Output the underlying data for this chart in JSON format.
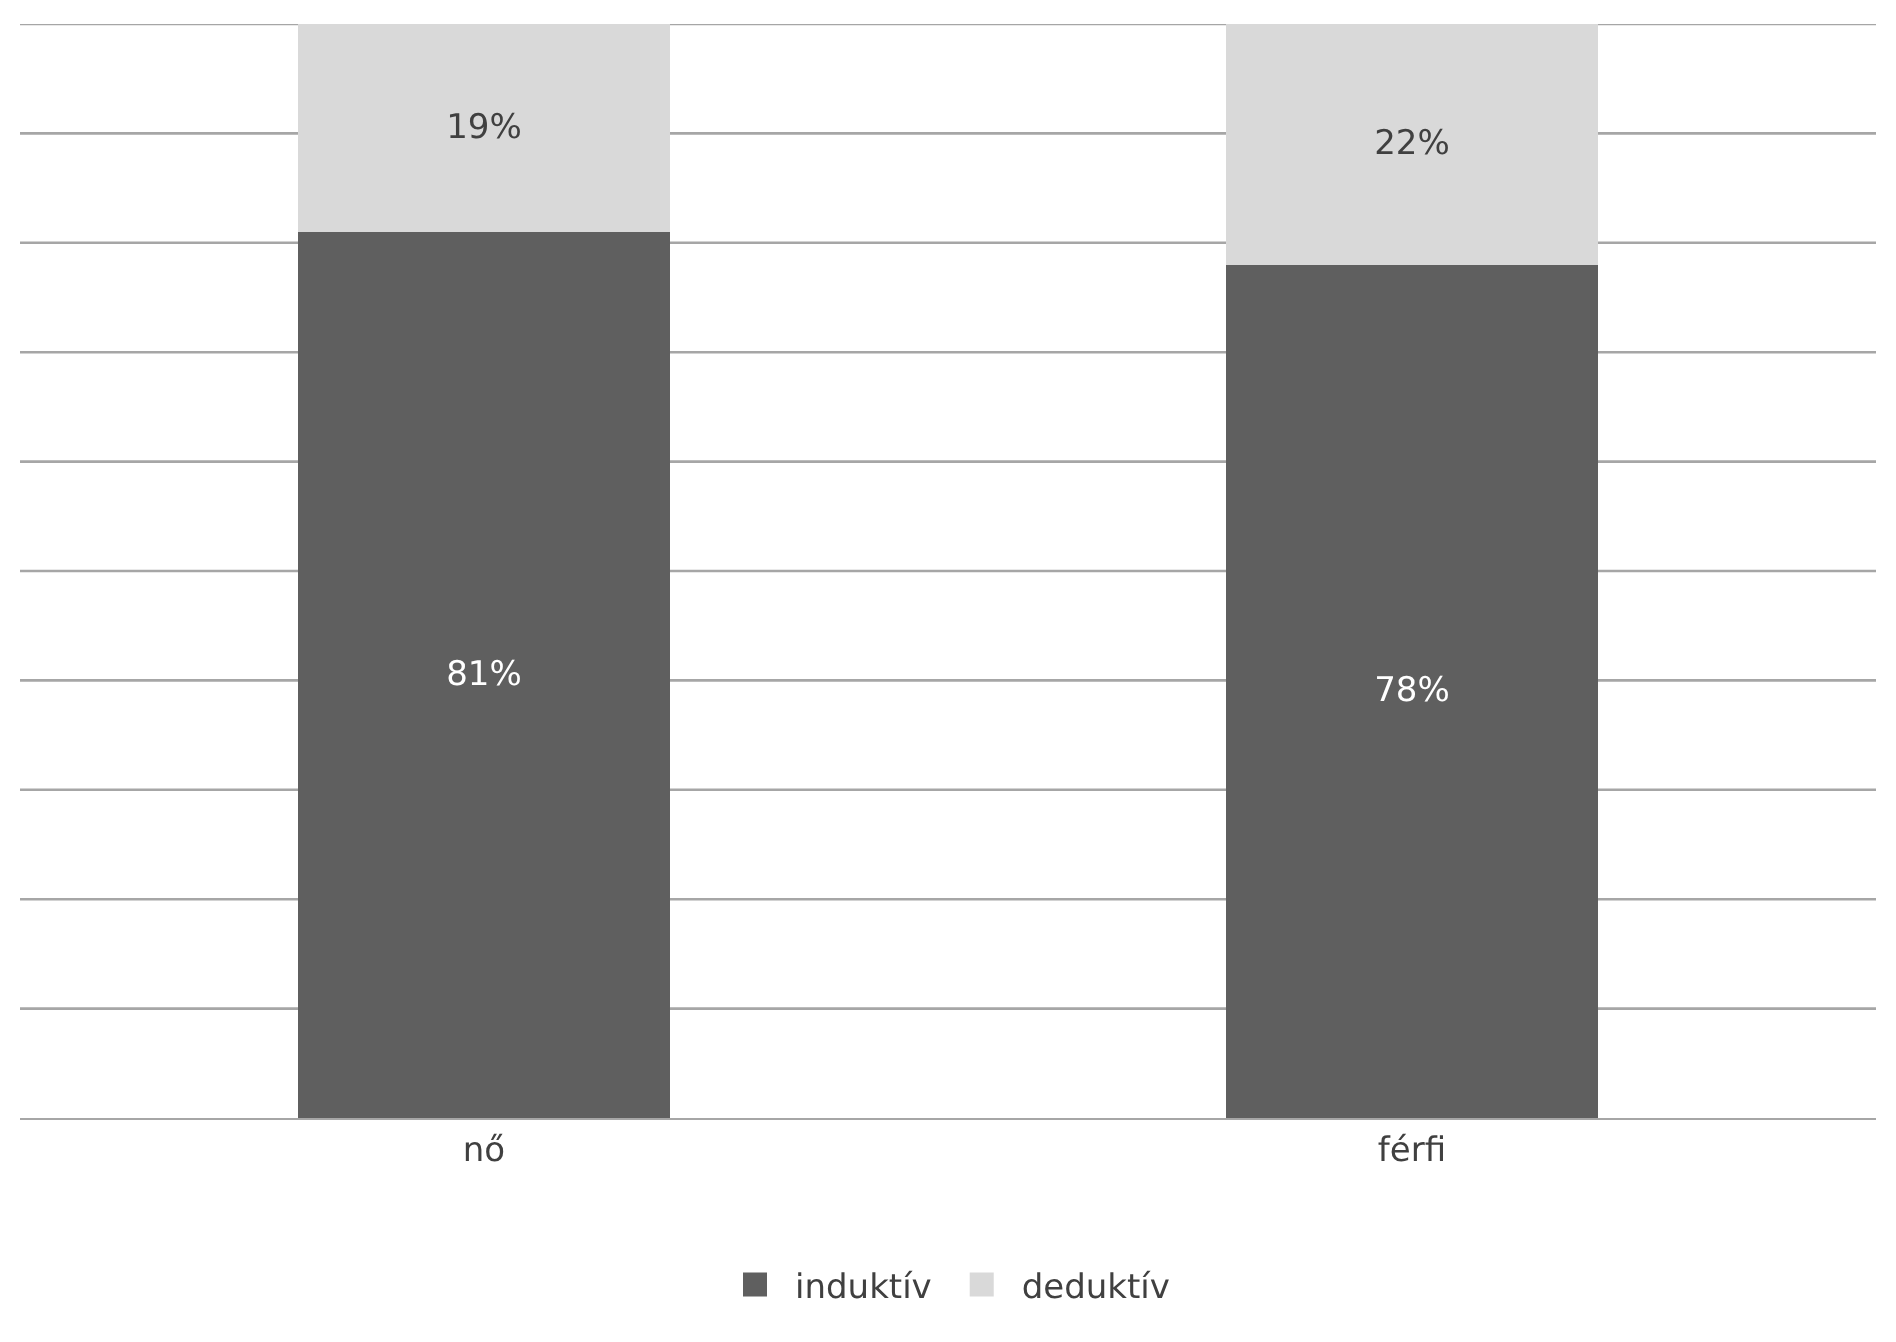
{
  "chart_data": {
    "type": "bar",
    "stacked": true,
    "categories": [
      "nő",
      "férfi"
    ],
    "series": [
      {
        "name": "induktív",
        "color": "#5f5f5f",
        "values": [
          81,
          78
        ],
        "value_labels": [
          "81%",
          "78%"
        ]
      },
      {
        "name": "deduktív",
        "color": "#d9d9d9",
        "values": [
          19,
          22
        ],
        "value_labels": [
          "19%",
          "22%"
        ]
      }
    ],
    "ylim": [
      0,
      100
    ],
    "yticks": [
      {
        "value": 0,
        "label": null
      },
      {
        "value": 10,
        "label": null
      },
      {
        "value": 20,
        "label": null
      },
      {
        "value": 30,
        "label": null
      },
      {
        "value": 40,
        "label": null
      },
      {
        "value": 50,
        "label": null
      },
      {
        "value": 60,
        "label": null
      },
      {
        "value": 70,
        "label": null
      },
      {
        "value": 80,
        "label": null
      },
      {
        "value": 90,
        "label": null
      },
      {
        "value": 100,
        "label": null
      }
    ],
    "grid": "y",
    "legend": "bottom",
    "tick_labels": "x"
  }
}
